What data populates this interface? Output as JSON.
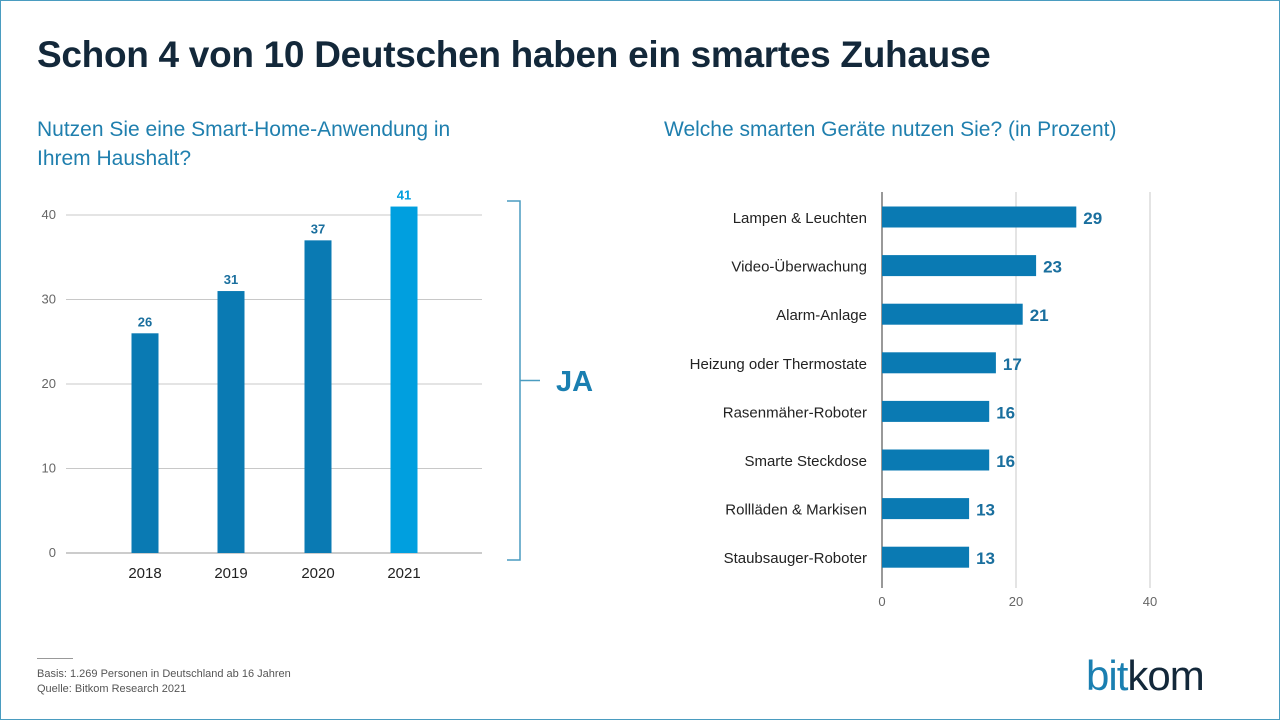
{
  "title": "Schon 4 von 10 Deutschen haben ein smartes Zuhause",
  "left_question": "Nutzen Sie eine Smart-Home-Anwendung in Ihrem Haushalt?",
  "right_question": "Welche smarten Geräte nutzen Sie? (in Prozent)",
  "bracket_label": "JA",
  "footnote_basis": "Basis: 1.269 Personen in Deutschland ab 16 Jahren",
  "footnote_source": "Quelle: Bitkom Research 2021",
  "logo": {
    "part1": "bit",
    "part2": "kom"
  },
  "colors": {
    "bar_dark": "#0a7ab3",
    "bar_highlight": "#009fdf",
    "label_text": "#1a6f9e",
    "title": "#13283a",
    "subtitle": "#1f7fae",
    "grid": "#c8c8c8",
    "axis": "#333333"
  },
  "chart_data": [
    {
      "type": "bar",
      "orientation": "vertical",
      "categories": [
        "2018",
        "2019",
        "2020",
        "2021"
      ],
      "values": [
        26,
        31,
        37,
        41
      ],
      "data_labels": [
        "26",
        "31",
        "37",
        "41"
      ],
      "highlight_index": 3,
      "ylim": [
        0,
        40
      ],
      "yticks": [
        0,
        10,
        20,
        30,
        40
      ],
      "grid": true
    },
    {
      "type": "bar",
      "orientation": "horizontal",
      "categories": [
        "Lampen & Leuchten",
        "Video-Überwachung",
        "Alarm-Anlage",
        "Heizung oder Thermostate",
        "Rasenmäher-Roboter",
        "Smarte Steckdose",
        "Rollläden & Markisen",
        "Staubsauger-Roboter"
      ],
      "values": [
        29,
        23,
        21,
        17,
        16,
        16,
        13,
        13
      ],
      "data_labels": [
        "29",
        "23",
        "21",
        "17",
        "16",
        "16",
        "13",
        "13"
      ],
      "xlim": [
        0,
        40
      ],
      "xticks": [
        0,
        20,
        40
      ],
      "grid": true
    }
  ]
}
